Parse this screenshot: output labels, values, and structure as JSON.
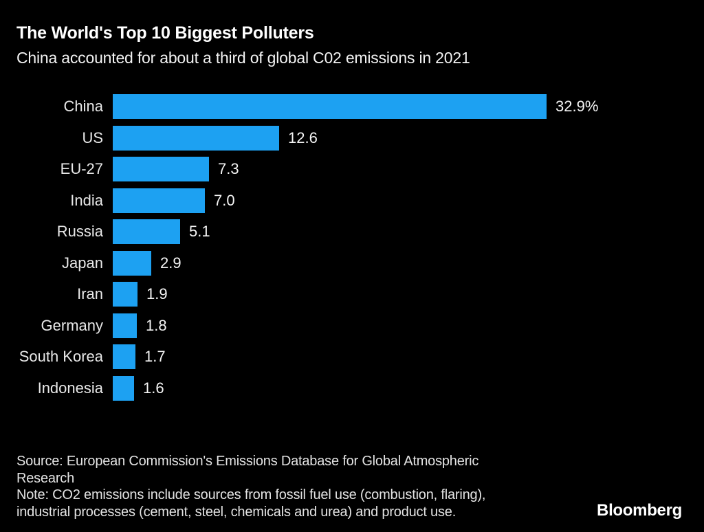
{
  "chart_data": {
    "type": "bar",
    "orientation": "horizontal",
    "title": "The World's Top 10 Biggest Polluters",
    "subtitle": "China accounted for about a third of global C02 emissions in 2021",
    "categories": [
      "China",
      "US",
      "EU-27",
      "India",
      "Russia",
      "Japan",
      "Iran",
      "Germany",
      "South Korea",
      "Indonesia"
    ],
    "values": [
      32.9,
      12.6,
      7.3,
      7.0,
      5.1,
      2.9,
      1.9,
      1.8,
      1.7,
      1.6
    ],
    "value_labels": [
      "32.9%",
      "12.6",
      "7.3",
      "7.0",
      "5.1",
      "2.9",
      "1.9",
      "1.8",
      "1.7",
      "1.6"
    ],
    "xlim": [
      0,
      32.9
    ],
    "xlabel": "",
    "ylabel": "",
    "grid": false,
    "legend": false,
    "bar_color": "#1da1f2",
    "background_color": "#000000"
  },
  "footer": {
    "source_lines": [
      "Source: European Commission's Emissions Database for Global Atmospheric",
      "Research"
    ],
    "note_lines": [
      "Note: CO2 emissions include sources from fossil fuel use (combustion, flaring),",
      "industrial processes (cement, steel, chemicals and urea) and product use."
    ],
    "brand": "Bloomberg"
  }
}
